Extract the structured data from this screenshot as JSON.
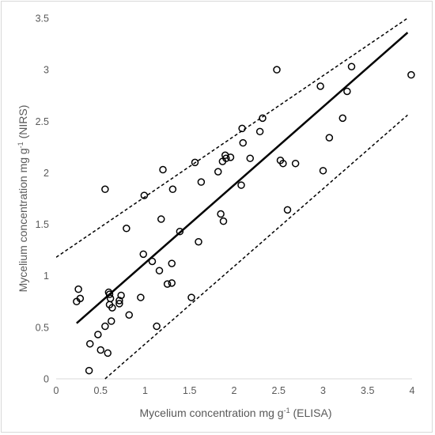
{
  "chart_data": {
    "type": "scatter",
    "xlabel_main": "Mycelium concentration mg g",
    "xlabel_sup": "-1",
    "xlabel_tail": " (ELISA)",
    "ylabel_main": "Mycelium  concentration mg g",
    "ylabel_sup": "-1",
    "ylabel_tail": " (NIRS)",
    "xlim": [
      0,
      4
    ],
    "ylim": [
      0,
      3.5
    ],
    "x_ticks": [
      "0",
      "0.5",
      "1",
      "1.5",
      "2",
      "2.5",
      "3",
      "3.5",
      "4"
    ],
    "y_ticks": [
      "0",
      "0.5",
      "1",
      "1.5",
      "2",
      "2.5",
      "3",
      "3.5"
    ],
    "grid": false,
    "legend": "none",
    "colors": {
      "marker": "#000000",
      "axis": "#d9d9d9",
      "text": "#595959"
    },
    "regression_line": {
      "style": "solid",
      "x": [
        0.23,
        3.95
      ],
      "y": [
        0.54,
        3.36
      ]
    },
    "upper_prediction_line": {
      "style": "dashed",
      "x": [
        0.0,
        3.95
      ],
      "y": [
        1.18,
        3.5
      ]
    },
    "lower_prediction_line": {
      "style": "dashed",
      "x": [
        0.55,
        3.95
      ],
      "y": [
        0.0,
        2.56
      ]
    },
    "points": [
      {
        "x": 0.23,
        "y": 0.75
      },
      {
        "x": 0.25,
        "y": 0.87
      },
      {
        "x": 0.27,
        "y": 0.78
      },
      {
        "x": 0.37,
        "y": 0.08
      },
      {
        "x": 0.38,
        "y": 0.34
      },
      {
        "x": 0.47,
        "y": 0.43
      },
      {
        "x": 0.5,
        "y": 0.28
      },
      {
        "x": 0.55,
        "y": 0.51
      },
      {
        "x": 0.55,
        "y": 1.84
      },
      {
        "x": 0.58,
        "y": 0.25
      },
      {
        "x": 0.59,
        "y": 0.84
      },
      {
        "x": 0.6,
        "y": 0.82
      },
      {
        "x": 0.6,
        "y": 0.72
      },
      {
        "x": 0.61,
        "y": 0.78
      },
      {
        "x": 0.62,
        "y": 0.56
      },
      {
        "x": 0.63,
        "y": 0.69
      },
      {
        "x": 0.71,
        "y": 0.73
      },
      {
        "x": 0.71,
        "y": 0.76
      },
      {
        "x": 0.73,
        "y": 0.81
      },
      {
        "x": 0.79,
        "y": 1.46
      },
      {
        "x": 0.82,
        "y": 0.62
      },
      {
        "x": 0.95,
        "y": 0.79
      },
      {
        "x": 0.98,
        "y": 1.21
      },
      {
        "x": 0.99,
        "y": 1.78
      },
      {
        "x": 1.08,
        "y": 1.14
      },
      {
        "x": 1.13,
        "y": 0.51
      },
      {
        "x": 1.16,
        "y": 1.05
      },
      {
        "x": 1.18,
        "y": 1.55
      },
      {
        "x": 1.2,
        "y": 2.03
      },
      {
        "x": 1.25,
        "y": 0.92
      },
      {
        "x": 1.3,
        "y": 0.93
      },
      {
        "x": 1.3,
        "y": 1.12
      },
      {
        "x": 1.31,
        "y": 1.84
      },
      {
        "x": 1.39,
        "y": 1.43
      },
      {
        "x": 1.52,
        "y": 0.79
      },
      {
        "x": 1.56,
        "y": 2.1
      },
      {
        "x": 1.6,
        "y": 1.33
      },
      {
        "x": 1.63,
        "y": 1.91
      },
      {
        "x": 1.82,
        "y": 2.01
      },
      {
        "x": 1.85,
        "y": 1.6
      },
      {
        "x": 1.87,
        "y": 2.11
      },
      {
        "x": 1.88,
        "y": 1.53
      },
      {
        "x": 1.9,
        "y": 2.17
      },
      {
        "x": 1.91,
        "y": 2.14
      },
      {
        "x": 1.96,
        "y": 2.15
      },
      {
        "x": 2.08,
        "y": 1.88
      },
      {
        "x": 2.09,
        "y": 2.43
      },
      {
        "x": 2.1,
        "y": 2.29
      },
      {
        "x": 2.18,
        "y": 2.14
      },
      {
        "x": 2.29,
        "y": 2.4
      },
      {
        "x": 2.32,
        "y": 2.53
      },
      {
        "x": 2.48,
        "y": 3.0
      },
      {
        "x": 2.52,
        "y": 2.12
      },
      {
        "x": 2.55,
        "y": 2.09
      },
      {
        "x": 2.6,
        "y": 1.64
      },
      {
        "x": 2.69,
        "y": 2.09
      },
      {
        "x": 2.97,
        "y": 2.84
      },
      {
        "x": 3.0,
        "y": 2.02
      },
      {
        "x": 3.07,
        "y": 2.34
      },
      {
        "x": 3.22,
        "y": 2.53
      },
      {
        "x": 3.27,
        "y": 2.79
      },
      {
        "x": 3.32,
        "y": 3.03
      },
      {
        "x": 3.99,
        "y": 2.95
      }
    ]
  }
}
